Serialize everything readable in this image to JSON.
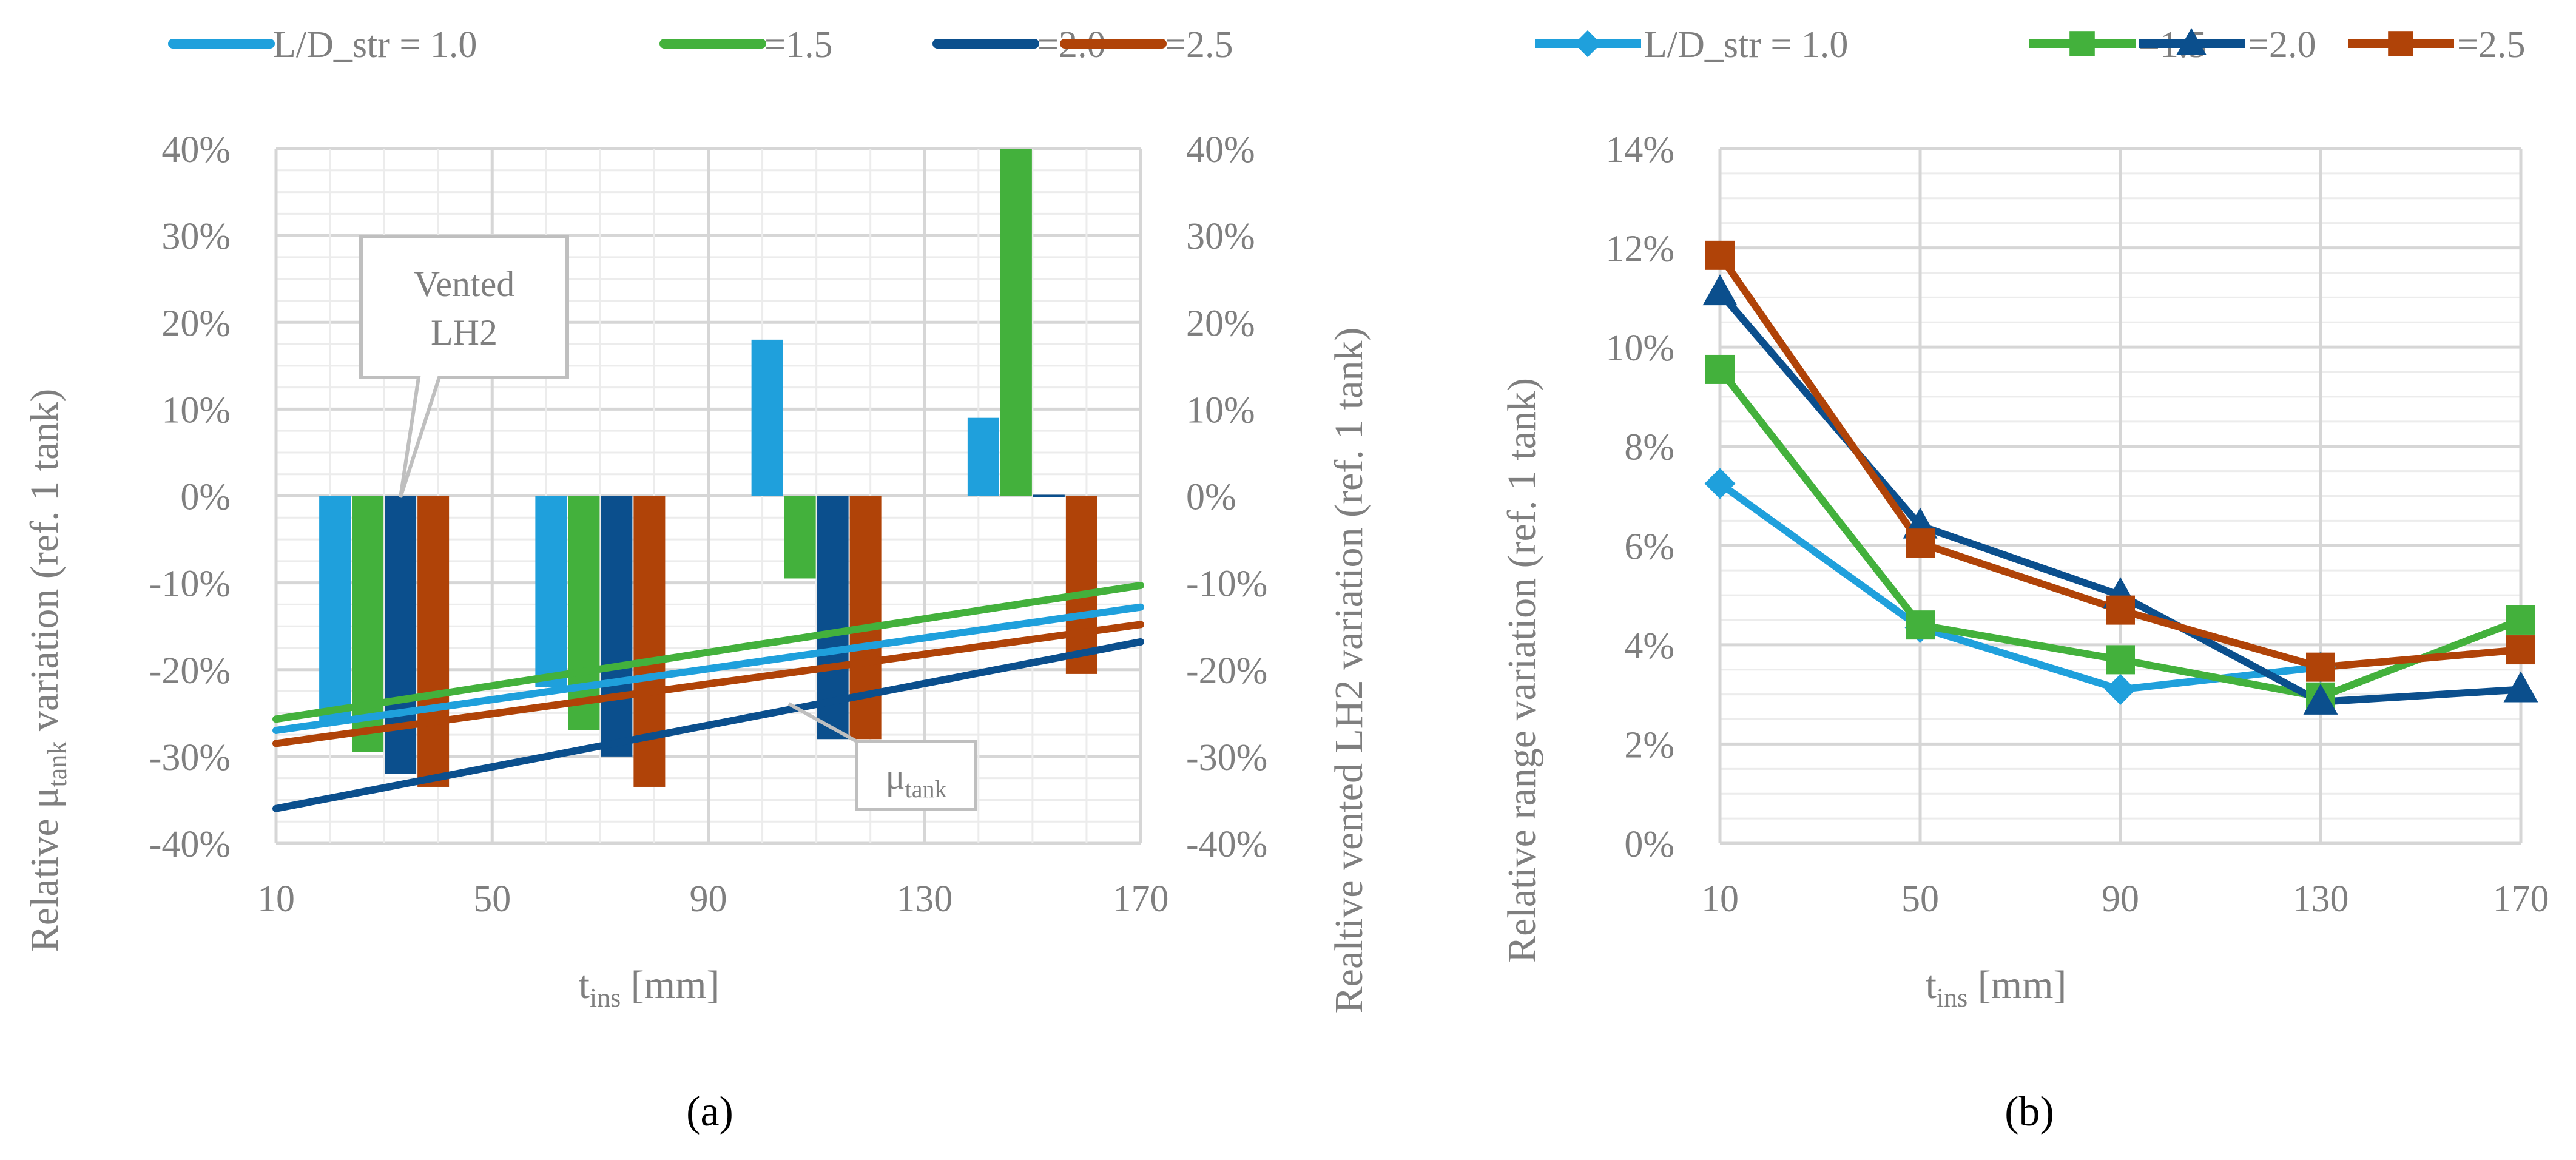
{
  "chart_data": [
    {
      "id": "a",
      "type": "bar",
      "panel_label": "(a)",
      "xlabel": {
        "main": "t",
        "sub": "ins",
        "rest": " [mm]"
      },
      "ylabel_left": {
        "pre": "Relative μ",
        "sub": "tank",
        "post": " variation (ref. 1 tank)"
      },
      "ylabel_right": "Realtive vented LH2 variation (ref. 1 tank)",
      "x_ticks": [
        "10",
        "50",
        "90",
        "130",
        "170"
      ],
      "xlim": [
        10,
        170
      ],
      "ylim": [
        -40,
        40
      ],
      "y_ticks": [
        "-40%",
        "-30%",
        "-20%",
        "-10%",
        "0%",
        "10%",
        "20%",
        "30%",
        "40%"
      ],
      "y_tick_values": [
        -40,
        -30,
        -20,
        -10,
        0,
        10,
        20,
        30,
        40
      ],
      "grid": true,
      "legend": {
        "position": "top",
        "entries": [
          "L/D_str = 1.0",
          "=1.5",
          "=2.0",
          "=2.5"
        ]
      },
      "bar_categories": [
        30,
        70,
        110,
        150
      ],
      "bar_series": [
        {
          "color": "#1fa0dc",
          "values": [
            -26,
            -22,
            18,
            9
          ]
        },
        {
          "color": "#43b13c",
          "values": [
            -29.5,
            -27,
            -9.5,
            40
          ]
        },
        {
          "color": "#0b4f8d",
          "values": [
            -32,
            -30,
            -28,
            0
          ]
        },
        {
          "color": "#b04308",
          "values": [
            -33.5,
            -33.5,
            -28,
            -20.5
          ]
        }
      ],
      "line_series": [
        {
          "color": "#1fa0dc",
          "x": [
            10,
            170
          ],
          "y": [
            -27,
            -12.8
          ]
        },
        {
          "color": "#43b13c",
          "x": [
            10,
            170
          ],
          "y": [
            -25.7,
            -10.3
          ]
        },
        {
          "color": "#0b4f8d",
          "x": [
            10,
            170
          ],
          "y": [
            -36,
            -16.8
          ]
        },
        {
          "color": "#b04308",
          "x": [
            10,
            170
          ],
          "y": [
            -28.5,
            -14.8
          ]
        }
      ],
      "annotations": [
        {
          "lines": [
            "Vented",
            "LH2"
          ]
        },
        {
          "main": "μ",
          "sub": "tank"
        }
      ]
    },
    {
      "id": "b",
      "type": "line",
      "panel_label": "(b)",
      "xlabel": {
        "main": "t",
        "sub": "ins",
        "rest": " [mm]"
      },
      "ylabel": "Relative range variation (ref. 1 tank)",
      "x": [
        10,
        50,
        90,
        130,
        170
      ],
      "x_ticks": [
        "10",
        "50",
        "90",
        "130",
        "170"
      ],
      "ylim": [
        0,
        14
      ],
      "y_ticks": [
        "0%",
        "2%",
        "4%",
        "6%",
        "8%",
        "10%",
        "12%",
        "14%"
      ],
      "y_tick_values": [
        0,
        2,
        4,
        6,
        8,
        10,
        12,
        14
      ],
      "grid": true,
      "legend": {
        "position": "top",
        "entries": [
          "L/D_str = 1.0",
          "=1.5",
          "=2.0",
          "=2.5"
        ]
      },
      "series": [
        {
          "color": "#1fa0dc",
          "marker": "diamond",
          "values": [
            7.25,
            4.35,
            3.1,
            3.55,
            null
          ]
        },
        {
          "color": "#43b13c",
          "marker": "square",
          "values": [
            9.55,
            4.4,
            3.7,
            2.95,
            4.5
          ]
        },
        {
          "color": "#0b4f8d",
          "marker": "triangle",
          "values": [
            11.1,
            6.4,
            5.0,
            2.85,
            3.1
          ]
        },
        {
          "color": "#b04308",
          "marker": "square",
          "values": [
            11.85,
            6.05,
            4.7,
            3.55,
            3.9
          ]
        }
      ]
    }
  ]
}
